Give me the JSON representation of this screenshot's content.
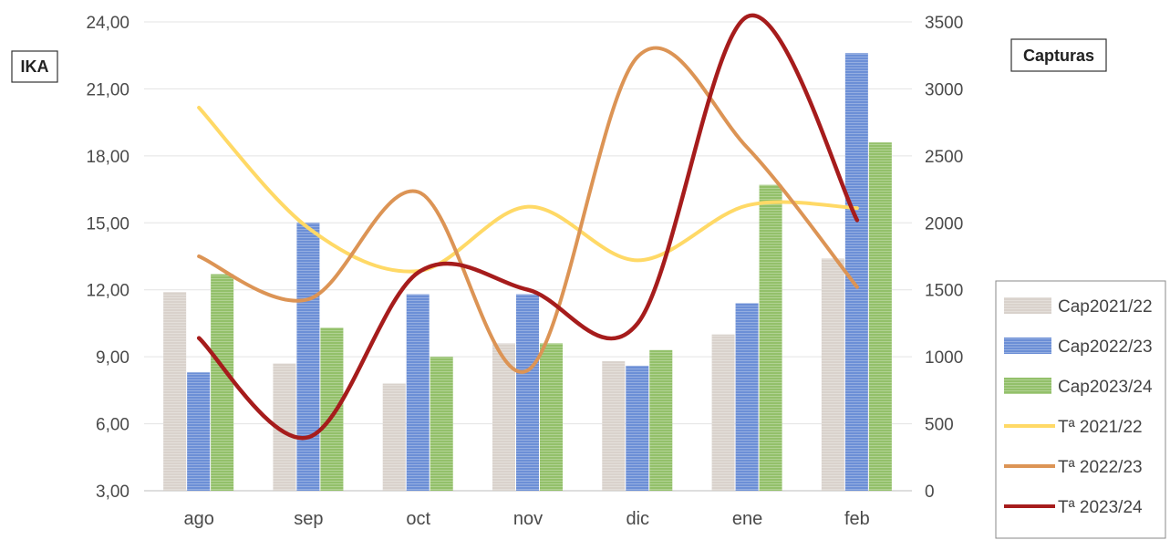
{
  "chart_data": {
    "type": "bar",
    "categories": [
      "ago",
      "sep",
      "oct",
      "nov",
      "dic",
      "ene",
      "feb"
    ],
    "y_left": {
      "label": "IKA",
      "ylim": [
        3,
        24
      ],
      "ticks": [
        "3,00",
        "6,00",
        "9,00",
        "12,00",
        "15,00",
        "18,00",
        "21,00",
        "24,00"
      ]
    },
    "y_right": {
      "label": "Capturas",
      "ylim": [
        0,
        3500
      ],
      "ticks": [
        "0",
        "500",
        "1000",
        "1500",
        "2000",
        "2500",
        "3000",
        "3500"
      ]
    },
    "bar_series": [
      {
        "name": "Cap2021/22",
        "axis": "left",
        "color": "#d9d2cc",
        "values": [
          11.9,
          8.7,
          7.8,
          9.6,
          8.8,
          10.0,
          13.4
        ]
      },
      {
        "name": "Cap2022/23",
        "axis": "left",
        "color": "#6c8fd6",
        "values": [
          8.3,
          15.0,
          11.8,
          11.8,
          8.6,
          11.4,
          22.6
        ]
      },
      {
        "name": "Cap2023/24",
        "axis": "left",
        "color": "#93c06a",
        "values": [
          12.7,
          10.3,
          9.0,
          9.6,
          9.3,
          16.7,
          18.6
        ]
      }
    ],
    "line_series": [
      {
        "name": "Tª 2021/22",
        "axis": "right",
        "color": "#ffd966",
        "values": [
          2860,
          1960,
          1640,
          2120,
          1720,
          2130,
          2110
        ]
      },
      {
        "name": "Tª 2022/23",
        "axis": "right",
        "color": "#dc9455",
        "values": [
          1750,
          1430,
          2230,
          900,
          3240,
          2560,
          1520
        ]
      },
      {
        "name": "Tª 2023/24",
        "axis": "right",
        "color": "#a61c1c",
        "values": [
          1140,
          400,
          1630,
          1500,
          1250,
          3540,
          2020
        ]
      }
    ],
    "legend_position": "right",
    "grid": true
  }
}
